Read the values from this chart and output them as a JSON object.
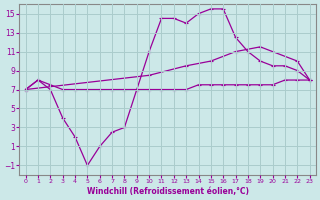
{
  "bg_color": "#cce8e8",
  "grid_color": "#aacccc",
  "line_color": "#990099",
  "xlabel": "Windchill (Refroidissement éolien,°C)",
  "xlim": [
    -0.5,
    23.5
  ],
  "ylim": [
    -2,
    16
  ],
  "xticks": [
    0,
    1,
    2,
    3,
    4,
    5,
    6,
    7,
    8,
    9,
    10,
    11,
    12,
    13,
    14,
    15,
    16,
    17,
    18,
    19,
    20,
    21,
    22,
    23
  ],
  "yticks": [
    -1,
    1,
    3,
    5,
    7,
    9,
    11,
    13,
    15
  ],
  "line1_x": [
    0,
    1,
    2,
    3,
    4,
    5,
    6,
    7,
    8,
    9,
    10,
    11,
    12,
    13,
    14,
    15,
    16,
    17,
    18,
    19,
    20,
    21,
    22,
    23
  ],
  "line1_y": [
    7,
    8,
    7.5,
    7,
    7,
    7,
    7,
    7,
    7,
    7,
    7,
    7,
    7,
    7,
    7.5,
    7.5,
    7.5,
    7.5,
    7.5,
    7.5,
    7.5,
    8,
    8,
    8
  ],
  "line2_x": [
    0,
    10,
    13,
    15,
    17,
    19,
    22,
    23
  ],
  "line2_y": [
    7,
    8.5,
    9.5,
    10,
    11,
    11.5,
    10,
    8
  ],
  "line3_x": [
    0,
    1,
    2,
    3,
    4,
    5,
    6,
    7,
    8,
    9,
    10,
    11,
    12,
    13,
    14,
    15,
    16,
    17,
    18,
    19,
    20,
    21,
    22,
    23
  ],
  "line3_y": [
    7,
    8,
    7,
    4,
    2,
    -1,
    1,
    2.5,
    3,
    7,
    11,
    14.5,
    14.5,
    14,
    15,
    15.5,
    15.5,
    12.5,
    11,
    10,
    9.5,
    9.5,
    9,
    8
  ]
}
